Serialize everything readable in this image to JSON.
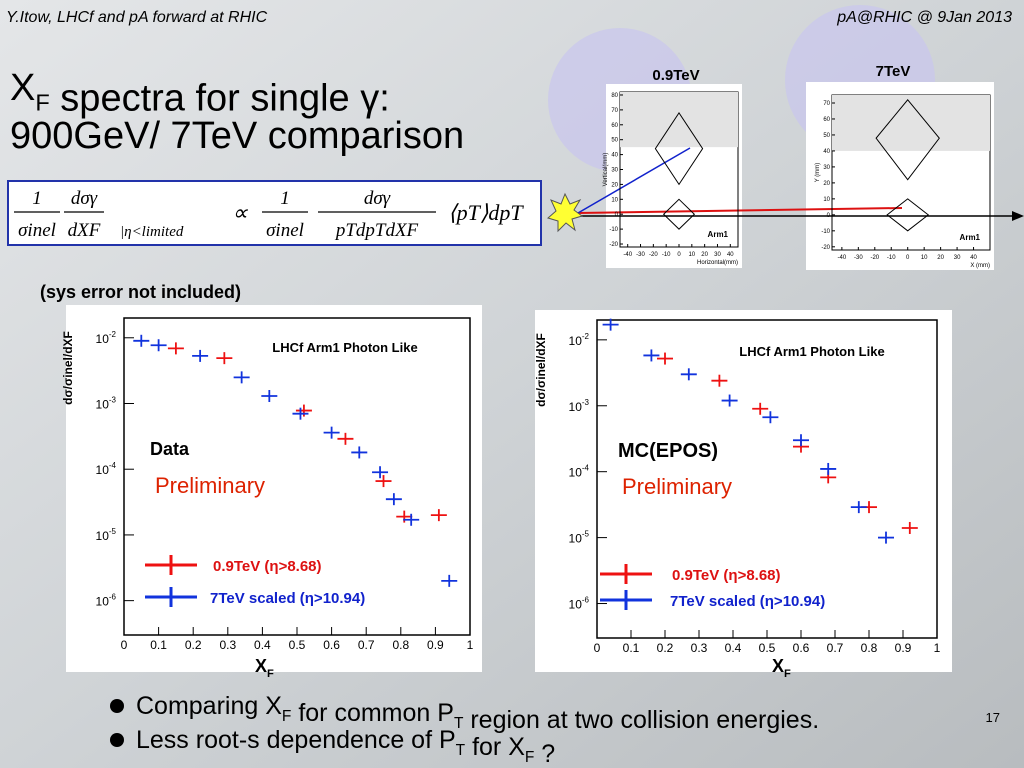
{
  "header": {
    "left": "Y.Itow,  LHCf and pA forward at RHIC",
    "right": "pA@RHIC @ 9Jan 2013"
  },
  "title": {
    "line1": [
      {
        "t": "X"
      },
      {
        "t": "F",
        "sub": true
      },
      {
        "t": " spectra for single "
      },
      {
        "t": "γ"
      },
      {
        "t": ":"
      }
    ],
    "line2": "900GeV/ 7TeV comparison"
  },
  "formula": [
    {
      "num": "1",
      "den": "σinel"
    },
    {
      "num": "dσγ",
      "den": "dXF"
    },
    {
      "text": "|η<limited"
    },
    {
      "text": "∝"
    },
    {
      "num": "1",
      "den": "σinel"
    },
    {
      "num": "dσγ",
      "den": "pTdpTdXF"
    },
    {
      "text": "⟨pT⟩dpT"
    }
  ],
  "note": "(sys error not included)",
  "detectors": [
    {
      "label": "0.9TeV",
      "ylabel": "Vertical(mm)",
      "xlabel": "Horizontal(mm)",
      "arm": "Arm1",
      "xlim": [
        -46,
        46
      ],
      "ylim": [
        -22,
        82
      ],
      "xticks": [
        -40,
        -30,
        -20,
        -10,
        0,
        10,
        20,
        30,
        40
      ],
      "yticks": [
        -20,
        -10,
        0,
        10,
        20,
        30,
        40,
        50,
        60,
        70,
        80
      ]
    },
    {
      "label": "7TeV",
      "ylabel": "Y (mm)",
      "xlabel": "X (mm)",
      "arm": "Arm1",
      "xlim": [
        -46,
        50
      ],
      "ylim": [
        -22,
        75
      ],
      "xticks": [
        -40,
        -30,
        -20,
        -10,
        0,
        10,
        20,
        30,
        40
      ],
      "yticks": [
        -20,
        -10,
        0,
        10,
        20,
        30,
        40,
        50,
        60,
        70
      ]
    }
  ],
  "chart_data": [
    {
      "type": "scatter",
      "title": "LHCf Arm1 Photon Like",
      "ylabel": "dσ/σinel/dXF",
      "xlabel": [
        {
          "t": "X"
        },
        {
          "t": "F",
          "sub": true
        }
      ],
      "log_y": true,
      "xlim": [
        0,
        1
      ],
      "ylim": [
        3e-07,
        0.02
      ],
      "xticks": [
        0,
        {
          "value": 0.1,
          "label": "0.1"
        },
        {
          "value": 0.2,
          "label": "0.2"
        },
        {
          "value": 0.3,
          "label": "0.3"
        },
        {
          "value": 0.4,
          "label": "0.4"
        },
        {
          "value": 0.5,
          "label": "0.5"
        },
        {
          "value": 0.6,
          "label": "0.6"
        },
        {
          "value": 0.7,
          "label": "0.7"
        },
        {
          "value": 0.8,
          "label": "0.8"
        },
        {
          "value": 0.9,
          "label": "0.9"
        },
        1
      ],
      "yticks": [
        {
          "value": 0.01,
          "label": "10",
          "exponent": "-2"
        },
        {
          "value": 0.001,
          "label": "10",
          "exponent": "-3"
        },
        {
          "value": 0.0001,
          "label": "10",
          "exponent": "-4"
        },
        {
          "value": 1e-05,
          "label": "10",
          "exponent": "-5"
        },
        {
          "value": 1e-06,
          "label": "10",
          "exponent": "-6"
        }
      ],
      "annotations": [
        {
          "text": "Data",
          "color": "#000000"
        },
        {
          "text": "Preliminary",
          "color": "#dd2200"
        }
      ],
      "series": [
        {
          "name": "0.9TeV  (η>8.68)",
          "color": "#ee1111",
          "x": [
            0.15,
            0.29,
            0.52,
            0.64,
            0.75,
            0.81,
            0.91
          ],
          "values": [
            0.0069,
            0.0049,
            0.00078,
            0.00029,
            6.6e-05,
            1.9e-05,
            2e-05
          ]
        },
        {
          "name": "7TeV scaled (η>10.94)",
          "color": "#1133dd",
          "x": [
            0.05,
            0.1,
            0.22,
            0.34,
            0.42,
            0.51,
            0.6,
            0.68,
            0.74,
            0.78,
            0.83,
            0.94
          ],
          "values": [
            0.009,
            0.0077,
            0.0053,
            0.0025,
            0.0013,
            0.0007,
            0.00036,
            0.00018,
            9e-05,
            3.5e-05,
            1.7e-05,
            2e-06
          ]
        }
      ]
    },
    {
      "type": "scatter",
      "title": "LHCf Arm1 Photon Like",
      "ylabel": "dσ/σinel/dXF",
      "xlabel": [
        {
          "t": "X"
        },
        {
          "t": "F",
          "sub": true
        }
      ],
      "log_y": true,
      "xlim": [
        0,
        1
      ],
      "ylim": [
        3e-07,
        0.02
      ],
      "xticks": [
        0,
        {
          "value": 0.1,
          "label": "0.1"
        },
        {
          "value": 0.2,
          "label": "0.2"
        },
        {
          "value": 0.3,
          "label": "0.3"
        },
        {
          "value": 0.4,
          "label": "0.4"
        },
        {
          "value": 0.5,
          "label": "0.5"
        },
        {
          "value": 0.6,
          "label": "0.6"
        },
        {
          "value": 0.7,
          "label": "0.7"
        },
        {
          "value": 0.8,
          "label": "0.8"
        },
        {
          "value": 0.9,
          "label": "0.9"
        },
        1
      ],
      "yticks": [
        {
          "value": 0.01,
          "label": "10",
          "exponent": "-2"
        },
        {
          "value": 0.001,
          "label": "10",
          "exponent": "-3"
        },
        {
          "value": 0.0001,
          "label": "10",
          "exponent": "-4"
        },
        {
          "value": 1e-05,
          "label": "10",
          "exponent": "-5"
        },
        {
          "value": 1e-06,
          "label": "10",
          "exponent": "-6"
        }
      ],
      "annotations": [
        {
          "text": "MC(EPOS)",
          "color": "#000000"
        },
        {
          "text": "Preliminary",
          "color": "#dd2200"
        }
      ],
      "series": [
        {
          "name": "0.9TeV  (η>8.68)",
          "color": "#ee1111",
          "x": [
            0.2,
            0.36,
            0.48,
            0.6,
            0.68,
            0.8,
            0.92
          ],
          "values": [
            0.0052,
            0.0024,
            0.0009,
            0.00024,
            8.2e-05,
            2.9e-05,
            1.4e-05
          ]
        },
        {
          "name": "7TeV scaled (η>10.94)",
          "color": "#1133dd",
          "x": [
            0.04,
            0.16,
            0.27,
            0.39,
            0.51,
            0.6,
            0.68,
            0.77,
            0.85
          ],
          "values": [
            0.017,
            0.0058,
            0.003,
            0.0012,
            0.00067,
            0.0003,
            0.00011,
            2.9e-05,
            1e-05
          ]
        }
      ]
    }
  ],
  "bullets": [
    [
      {
        "t": "Comparing X"
      },
      {
        "t": "F",
        "sub": true
      },
      {
        "t": " for common P"
      },
      {
        "t": "T",
        "sub": true
      },
      {
        "t": " region at two collision energies."
      }
    ],
    [
      {
        "t": "Less root-s dependence of P"
      },
      {
        "t": "T",
        "sub": true
      },
      {
        "t": "  for X"
      },
      {
        "t": "F",
        "sub": true
      },
      {
        "t": " ?"
      }
    ]
  ],
  "page_number": "17"
}
